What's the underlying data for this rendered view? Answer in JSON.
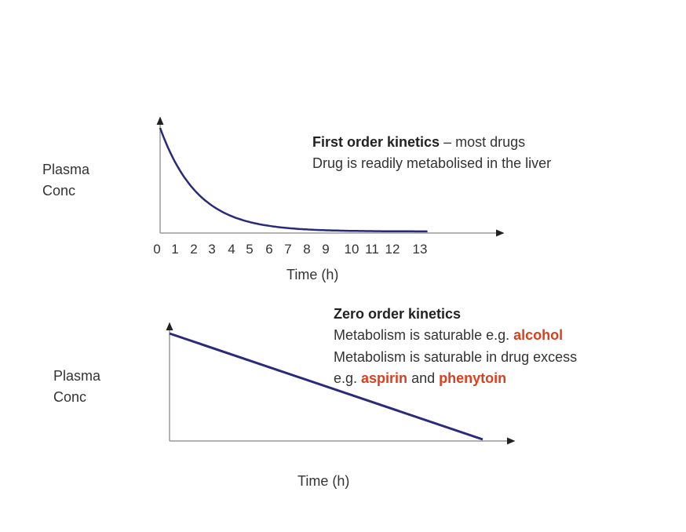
{
  "colors": {
    "curve": "#2a2a7a",
    "axis": "#999999",
    "text": "#333333",
    "highlight": "#d9401f"
  },
  "chart_data": [
    {
      "type": "line",
      "ylabel": "Plasma Conc",
      "xlabel": "Time (h)",
      "x_ticks": [
        "0",
        "1",
        "2",
        "3",
        "4",
        "5",
        "6",
        "7",
        "8",
        "9",
        "10",
        "11",
        "12",
        "13"
      ],
      "xlim": [
        0,
        13
      ],
      "y_ticks": [],
      "grid": false,
      "shape": "exponential decay",
      "x": [
        0,
        1,
        2,
        3,
        4,
        5,
        6,
        7,
        8,
        9,
        10,
        11,
        12,
        13
      ],
      "y_relative": [
        1.0,
        0.58,
        0.33,
        0.19,
        0.11,
        0.064,
        0.037,
        0.021,
        0.012,
        0.007,
        0.004,
        0.002,
        0.001,
        0.001
      ],
      "annotation": {
        "title": "First order kinetics",
        "title_suffix": " – most drugs",
        "line2": "Drug is readily metabolised in the liver"
      }
    },
    {
      "type": "line",
      "ylabel": "Plasma Conc",
      "xlabel": "Time (h)",
      "x_ticks": [],
      "y_ticks": [],
      "grid": false,
      "shape": "linear decline",
      "x": [
        0,
        1
      ],
      "y_relative": [
        1.0,
        0.0
      ],
      "annotation": {
        "title": "Zero order kinetics",
        "line2_text": "Metabolism is saturable e.g. ",
        "line2_red": "alcohol",
        "line3": "Metabolism is saturable in drug excess",
        "line4_a": "e.g. ",
        "line4_red1": "aspirin",
        "line4_b": " and ",
        "line4_red2": "phenytoin"
      }
    }
  ],
  "labels": {
    "plasma": "Plasma",
    "conc": "Conc"
  }
}
